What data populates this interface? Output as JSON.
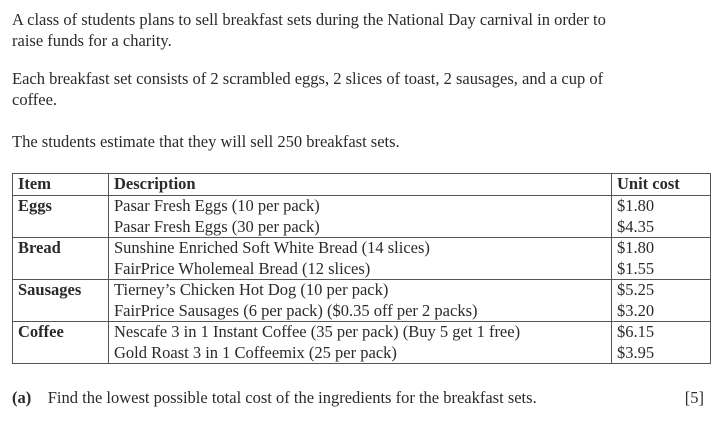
{
  "intro": [
    "A class of students plans to sell breakfast sets during the National Day carnival in order to",
    "raise funds for a charity.",
    "Each breakfast set consists of 2 scrambled eggs, 2 slices of toast, 2 sausages, and a cup of",
    "coffee.",
    "The students estimate that they will sell 250 breakfast sets."
  ],
  "table": {
    "headers": [
      "Item",
      "Description",
      "Unit cost"
    ],
    "groups": [
      {
        "item": "Eggs",
        "rows": [
          {
            "description": "Pasar Fresh Eggs (10 per pack)",
            "cost": "$1.80"
          },
          {
            "description": "Pasar Fresh Eggs (30 per pack)",
            "cost": "$4.35"
          }
        ]
      },
      {
        "item": "Bread",
        "rows": [
          {
            "description": "Sunshine Enriched Soft White Bread (14 slices)",
            "cost": "$1.80"
          },
          {
            "description": "FairPrice Wholemeal Bread (12 slices)",
            "cost": "$1.55"
          }
        ]
      },
      {
        "item": "Sausages",
        "rows": [
          {
            "description": "Tierney’s Chicken Hot Dog (10 per pack)",
            "cost": "$5.25"
          },
          {
            "description": "FairPrice Sausages (6 per pack) ($0.35 off per 2 packs)",
            "cost": "$3.20"
          }
        ]
      },
      {
        "item": "Coffee",
        "rows": [
          {
            "description": "Nescafe 3 in 1 Instant Coffee (35 per pack) (Buy 5 get 1 free)",
            "cost": "$6.15"
          },
          {
            "description": "Gold Roast 3 in 1 Coffeemix (25 per pack)",
            "cost": "$3.95"
          }
        ]
      }
    ]
  },
  "question": {
    "label": "(a)",
    "text": "Find the lowest possible total cost of the ingredients for the breakfast sets.",
    "marks": "[5]"
  }
}
